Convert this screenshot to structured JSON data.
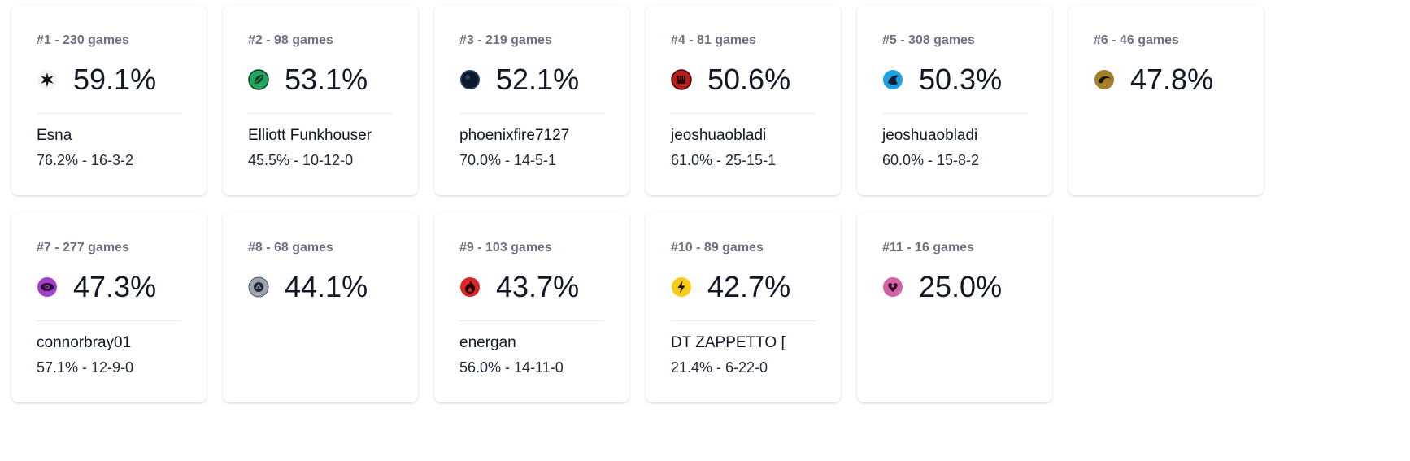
{
  "cards": [
    {
      "rank": "#1 - 230 games",
      "pct": "59.1%",
      "icon": "white-star-icon",
      "color": "#f3f4f6",
      "player": "Esna",
      "record": "76.2% - 16-3-2"
    },
    {
      "rank": "#2 - 98 games",
      "pct": "53.1%",
      "icon": "green-leaf-icon",
      "color": "#22a45d",
      "player": "Elliott Funkhouser",
      "record": "45.5% - 10-12-0"
    },
    {
      "rank": "#3 - 219 games",
      "pct": "52.1%",
      "icon": "dark-orb-icon",
      "color": "#0f172a",
      "player": "phoenixfire7127",
      "record": "70.0% - 14-5-1"
    },
    {
      "rank": "#4 - 81 games",
      "pct": "50.6%",
      "icon": "red-fist-icon",
      "color": "#b91c1c",
      "player": "jeoshuaobladi",
      "record": "61.0% - 25-15-1"
    },
    {
      "rank": "#5 - 308 games",
      "pct": "50.3%",
      "icon": "blue-water-icon",
      "color": "#1da1e0",
      "player": "jeoshuaobladi",
      "record": "60.0% - 15-8-2"
    },
    {
      "rank": "#6 - 46 games",
      "pct": "47.8%",
      "icon": "gold-dragon-icon",
      "color": "#a37f2b",
      "player": "",
      "record": ""
    },
    {
      "rank": "#7 - 277 games",
      "pct": "47.3%",
      "icon": "purple-eye-icon",
      "color": "#a23ec7",
      "player": "connorbray01",
      "record": "57.1% - 12-9-0"
    },
    {
      "rank": "#8 - 68 games",
      "pct": "44.1%",
      "icon": "gray-metal-icon",
      "color": "#9ca3af",
      "player": "",
      "record": ""
    },
    {
      "rank": "#9 - 103 games",
      "pct": "43.7%",
      "icon": "red-fire-icon",
      "color": "#dc2626",
      "player": "energan",
      "record": "56.0% - 14-11-0"
    },
    {
      "rank": "#10 - 89 games",
      "pct": "42.7%",
      "icon": "yellow-lightning-icon",
      "color": "#facc15",
      "player": "DT ZAPPETTO [",
      "record": "21.4% - 6-22-0"
    },
    {
      "rank": "#11 - 16 games",
      "pct": "25.0%",
      "icon": "pink-fairy-icon",
      "color": "#d35fa6",
      "player": "",
      "record": ""
    }
  ]
}
